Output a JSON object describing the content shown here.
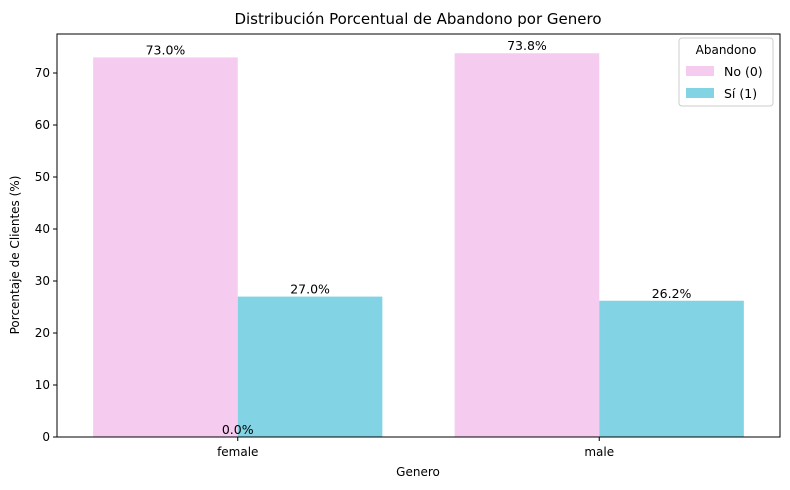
{
  "chart_data": {
    "type": "bar",
    "title": "Distribución Porcentual de Abandono por Genero",
    "xlabel": "Genero",
    "ylabel": "Porcentaje de Clientes (%)",
    "categories": [
      "female",
      "male"
    ],
    "series": [
      {
        "name": "No (0)",
        "values": [
          73.0,
          73.8
        ],
        "labels": [
          "73.0%",
          "73.8%"
        ],
        "color": "#f5cbef"
      },
      {
        "name": "Sí (1)",
        "values": [
          27.0,
          26.2
        ],
        "labels": [
          "27.0%",
          "26.2%"
        ],
        "color": "#82d3e4"
      }
    ],
    "extra_labels": [
      "0.0%"
    ],
    "legend": {
      "title": "Abandono",
      "position": "top-right"
    },
    "ylim": [
      0,
      77.5
    ],
    "yticks": [
      0,
      10,
      20,
      30,
      40,
      50,
      60,
      70
    ],
    "grid": false
  }
}
